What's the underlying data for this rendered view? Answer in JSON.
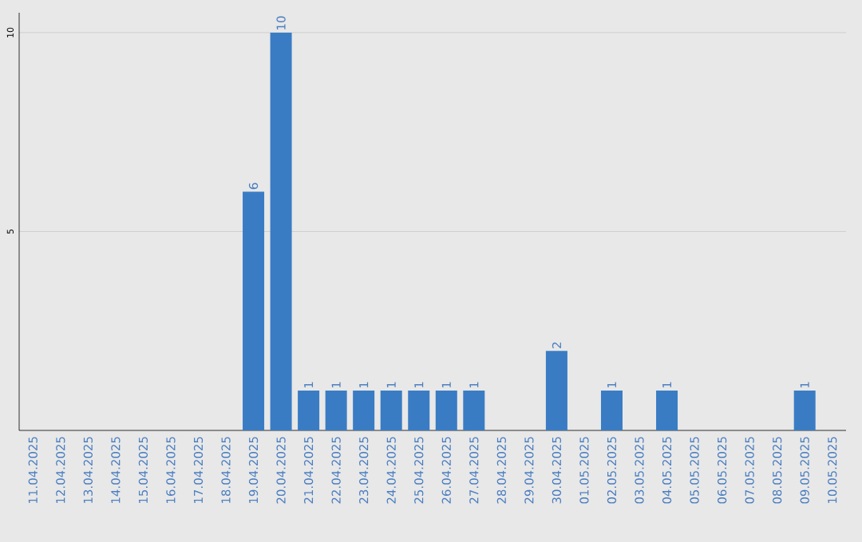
{
  "chart_data": {
    "type": "bar",
    "categories": [
      "11.04.2025",
      "12.04.2025",
      "13.04.2025",
      "14.04.2025",
      "15.04.2025",
      "16.04.2025",
      "17.04.2025",
      "18.04.2025",
      "19.04.2025",
      "20.04.2025",
      "21.04.2025",
      "22.04.2025",
      "23.04.2025",
      "24.04.2025",
      "25.04.2025",
      "26.04.2025",
      "27.04.2025",
      "28.04.2025",
      "29.04.2025",
      "30.04.2025",
      "01.05.2025",
      "02.05.2025",
      "03.05.2025",
      "04.05.2025",
      "05.05.2025",
      "06.05.2025",
      "07.05.2025",
      "08.05.2025",
      "09.05.2025",
      "10.05.2025"
    ],
    "values": [
      0,
      0,
      0,
      0,
      0,
      0,
      0,
      0,
      6,
      10,
      1,
      1,
      1,
      1,
      1,
      1,
      1,
      0,
      0,
      2,
      0,
      1,
      0,
      1,
      0,
      0,
      0,
      0,
      1,
      0
    ],
    "value_labels": [
      null,
      null,
      null,
      null,
      null,
      null,
      null,
      null,
      "6",
      "10",
      "1",
      "1",
      "1",
      "1",
      "1",
      "1",
      "1",
      null,
      null,
      "2",
      null,
      "1",
      null,
      "1",
      null,
      null,
      null,
      null,
      "1",
      null
    ],
    "color": "#3a7cc4",
    "ylim": [
      0,
      10.5
    ],
    "yticks": [
      5,
      10
    ],
    "grid": "y"
  }
}
